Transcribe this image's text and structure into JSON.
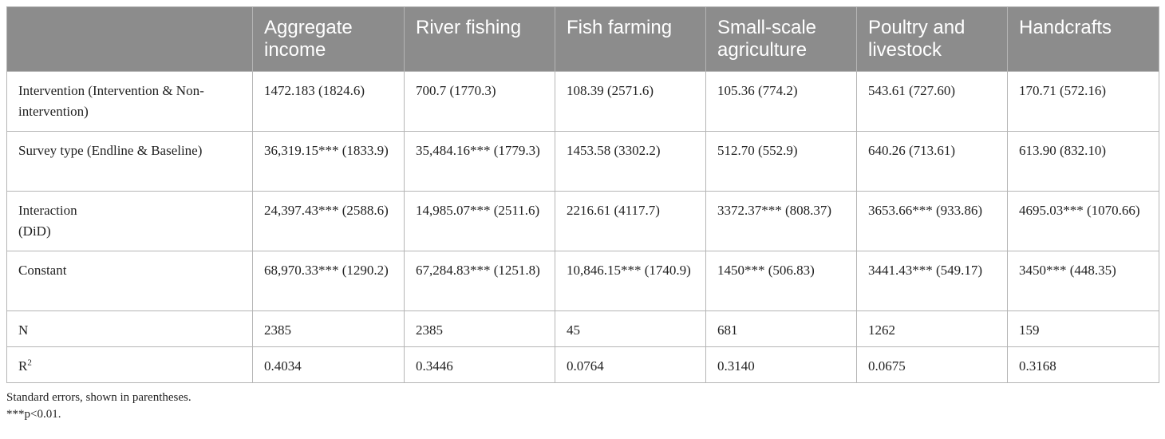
{
  "table": {
    "headers": [
      "",
      "Aggregate income",
      "River fishing",
      "Fish farming",
      "Small-scale agriculture",
      "Poultry and livestock",
      "Handcrafts"
    ],
    "rows": {
      "intervention": {
        "label": "Intervention (Intervention & Non-intervention)",
        "cells": [
          "1472.183 (1824.6)",
          "700.7 (1770.3)",
          "108.39 (2571.6)",
          "105.36 (774.2)",
          "543.61 (727.60)",
          "170.71 (572.16)"
        ]
      },
      "survey_type": {
        "label": "Survey type (Endline & Baseline)",
        "cells": [
          "36,319.15*** (1833.9)",
          "35,484.16*** (1779.3)",
          "1453.58 (3302.2)",
          "512.70 (552.9)",
          "640.26 (713.61)",
          "613.90 (832.10)"
        ]
      },
      "interaction": {
        "label_line1": "Interaction",
        "label_line2": "(DiD)",
        "cells": [
          "24,397.43*** (2588.6)",
          "14,985.07*** (2511.6)",
          "2216.61 (4117.7)",
          "3372.37*** (808.37)",
          "3653.66*** (933.86)",
          "4695.03*** (1070.66)"
        ]
      },
      "constant": {
        "label": "Constant",
        "cells": [
          "68,970.33*** (1290.2)",
          "67,284.83*** (1251.8)",
          "10,846.15*** (1740.9)",
          "1450*** (506.83)",
          "3441.43*** (549.17)",
          "3450*** (448.35)"
        ]
      },
      "n": {
        "label": "N",
        "cells": [
          "2385",
          "2385",
          "45",
          "681",
          "1262",
          "159"
        ]
      },
      "r2": {
        "label_base": "R",
        "label_sup": "2",
        "cells": [
          "0.4034",
          "0.3446",
          "0.0764",
          "0.3140",
          "0.0675",
          "0.3168"
        ]
      }
    },
    "notes": [
      "Standard errors, shown in parentheses.",
      "***p<0.01."
    ]
  }
}
